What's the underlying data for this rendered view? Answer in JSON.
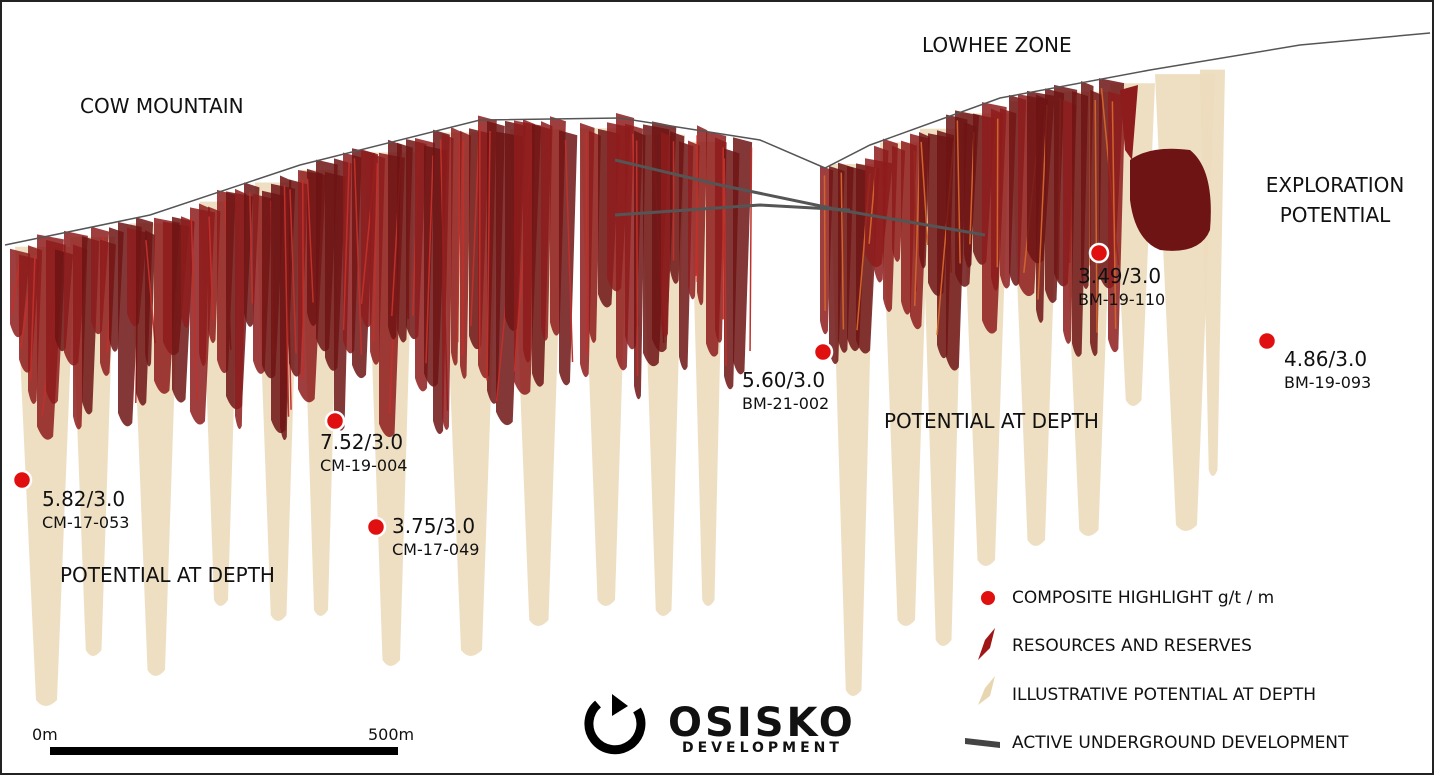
{
  "zones": {
    "cow_mountain": "COW MOUNTAIN",
    "lowhee": "LOWHEE ZONE",
    "exploration": "EXPLORATION POTENTIAL"
  },
  "depth_labels": [
    "POTENTIAL AT DEPTH",
    "POTENTIAL AT DEPTH"
  ],
  "highlights": [
    {
      "value": "5.82/3.0",
      "hole": "CM-17-053"
    },
    {
      "value": "7.52/3.0",
      "hole": "CM-19-004"
    },
    {
      "value": "3.75/3.0",
      "hole": "CM-17-049"
    },
    {
      "value": "5.60/3.0",
      "hole": "BM-21-002"
    },
    {
      "value": "3.49/3.0",
      "hole": "BM-19-110"
    },
    {
      "value": "4.86/3.0",
      "hole": "BM-19-093"
    }
  ],
  "scale": {
    "start": "0m",
    "end": "500m"
  },
  "legend": [
    "COMPOSITE HIGHLIGHT g/t / m",
    "RESOURCES AND RESERVES",
    "ILLUSTRATIVE POTENTIAL AT DEPTH",
    "ACTIVE UNDERGROUND DEVELOPMENT"
  ],
  "logo": {
    "name": "OSISKO",
    "sub": "DEVELOPMENT"
  }
}
